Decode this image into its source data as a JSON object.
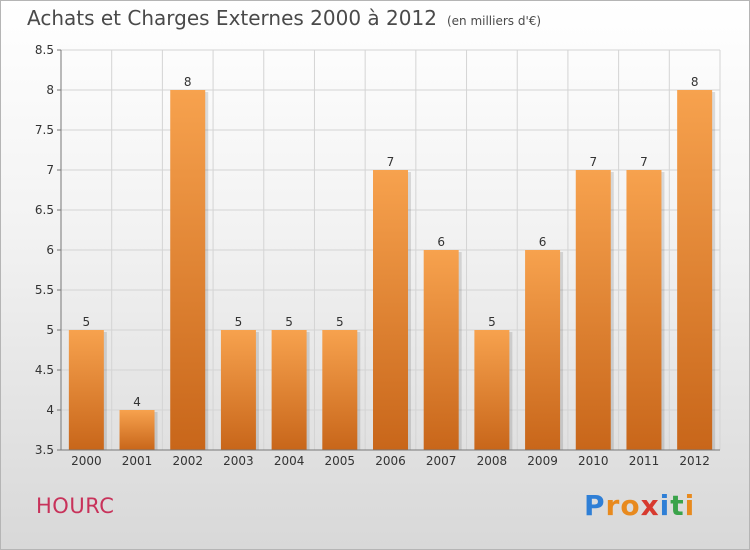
{
  "header": {
    "title": "Achats et Charges Externes 2000 à 2012",
    "unit": "(en milliers d'€)"
  },
  "commune": "HOURC",
  "logo": {
    "letters": [
      "P",
      "r",
      "o",
      "x",
      "i",
      "t",
      "i"
    ],
    "colors": [
      "#2f7fd6",
      "#e88a1e",
      "#e88a1e",
      "#d73a2f",
      "#2f7fd6",
      "#3aa34a",
      "#e88a1e"
    ]
  },
  "colors": {
    "bar_light": "#f7a24e",
    "bar_dark": "#c8661a",
    "commune": "#c8325a"
  },
  "chart_data": {
    "type": "bar",
    "title": "Achats et Charges Externes 2000 à 2012",
    "subtitle": "(en milliers d'€)",
    "categories": [
      "2000",
      "2001",
      "2002",
      "2003",
      "2004",
      "2005",
      "2006",
      "2007",
      "2008",
      "2009",
      "2010",
      "2011",
      "2012"
    ],
    "values": [
      5,
      4,
      8,
      5,
      5,
      5,
      7,
      6,
      5,
      6,
      7,
      7,
      8
    ],
    "data_labels": [
      "5",
      "4",
      "8",
      "5",
      "5",
      "5",
      "7",
      "6",
      "5",
      "6",
      "7",
      "7",
      "8"
    ],
    "ylim": [
      3.5,
      8.5
    ],
    "yticks": [
      3.5,
      4,
      4.5,
      5,
      5.5,
      6,
      6.5,
      7,
      7.5,
      8,
      8.5
    ],
    "ytick_labels": [
      "3.5",
      "4",
      "4.5",
      "5",
      "5.5",
      "6",
      "6.5",
      "7",
      "7.5",
      "8",
      "8.5"
    ],
    "grid": true,
    "xlabel": "",
    "ylabel": ""
  }
}
